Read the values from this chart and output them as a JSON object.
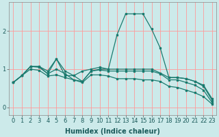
{
  "xlabel": "Humidex (Indice chaleur)",
  "background_color": "#cceaea",
  "grid_color": "#ff9999",
  "line_color": "#1a7a6e",
  "xlim": [
    -0.5,
    23.5
  ],
  "ylim": [
    -0.2,
    2.75
  ],
  "yticks": [
    0,
    1,
    2
  ],
  "ytick_labels": [
    "0",
    "1",
    "2"
  ],
  "xticks": [
    0,
    1,
    2,
    3,
    4,
    5,
    6,
    7,
    8,
    9,
    10,
    11,
    12,
    13,
    14,
    15,
    16,
    17,
    18,
    19,
    20,
    21,
    22,
    23
  ],
  "series": [
    [
      0.65,
      0.83,
      1.07,
      1.07,
      0.95,
      1.27,
      0.83,
      0.83,
      0.95,
      1.0,
      1.05,
      1.0,
      1.9,
      2.45,
      2.45,
      2.45,
      2.05,
      1.55,
      0.78,
      0.78,
      0.75,
      0.68,
      0.58,
      0.22
    ],
    [
      0.65,
      0.83,
      1.07,
      1.07,
      0.88,
      1.27,
      0.95,
      0.83,
      0.68,
      0.95,
      1.0,
      1.0,
      1.0,
      1.0,
      1.0,
      1.0,
      1.0,
      0.9,
      0.78,
      0.78,
      0.75,
      0.68,
      0.55,
      0.18
    ],
    [
      0.65,
      0.83,
      1.07,
      1.05,
      0.88,
      1.0,
      0.88,
      0.72,
      0.68,
      0.95,
      0.98,
      0.95,
      0.95,
      0.95,
      0.95,
      0.95,
      0.95,
      0.88,
      0.72,
      0.72,
      0.65,
      0.58,
      0.45,
      0.12
    ],
    [
      0.65,
      0.83,
      1.0,
      0.97,
      0.82,
      0.85,
      0.78,
      0.72,
      0.65,
      0.85,
      0.85,
      0.82,
      0.75,
      0.75,
      0.75,
      0.72,
      0.72,
      0.68,
      0.55,
      0.52,
      0.45,
      0.38,
      0.28,
      0.08
    ]
  ],
  "tick_color": "#1a5a5a",
  "label_fontsize": 6,
  "xlabel_fontsize": 7
}
